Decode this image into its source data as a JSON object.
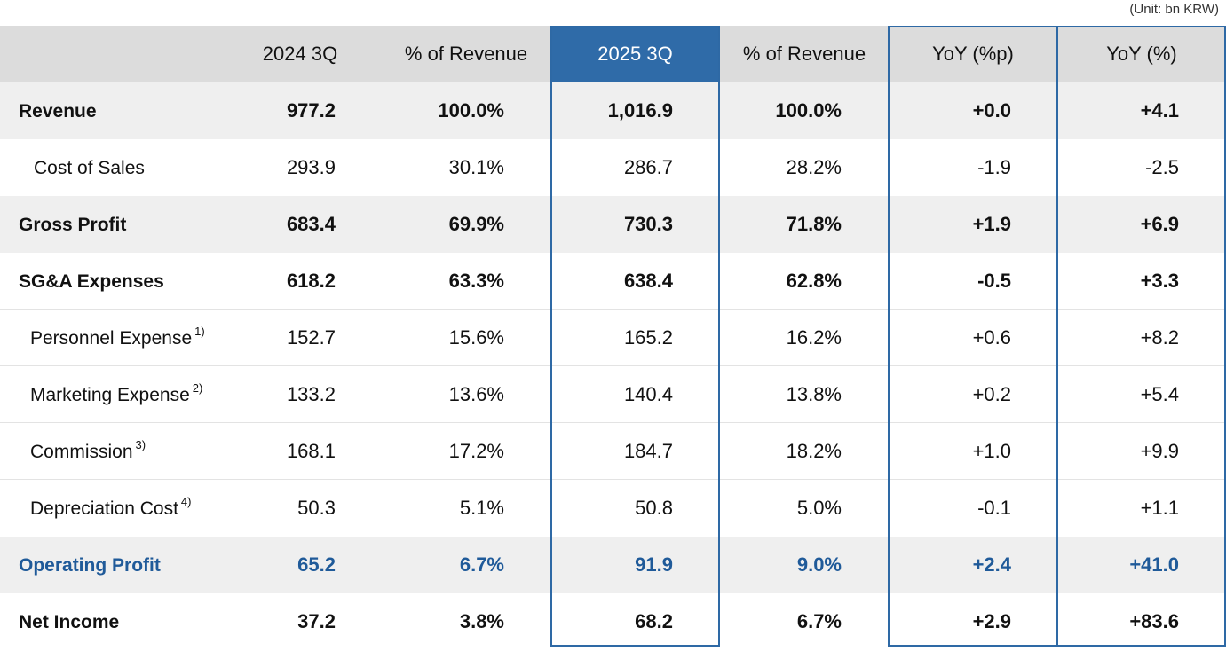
{
  "unit": "(Unit: bn KRW)",
  "columns": [
    "2024 3Q",
    "% of Revenue",
    "2025 3Q",
    "% of Revenue",
    "YoY (%p)",
    "YoY  (%)"
  ],
  "rows": [
    {
      "label": "Revenue",
      "note": "",
      "values": [
        "977.2",
        "100.0%",
        "1,016.9",
        "100.0%",
        "+0.0",
        "+4.1"
      ]
    },
    {
      "label": "Cost of Sales",
      "note": "",
      "values": [
        "293.9",
        "30.1%",
        "286.7",
        "28.2%",
        "-1.9",
        "-2.5"
      ]
    },
    {
      "label": "Gross Profit",
      "note": "",
      "values": [
        "683.4",
        "69.9%",
        "730.3",
        "71.8%",
        "+1.9",
        "+6.9"
      ]
    },
    {
      "label": "SG&A Expenses",
      "note": "",
      "values": [
        "618.2",
        "63.3%",
        "638.4",
        "62.8%",
        "-0.5",
        "+3.3"
      ]
    },
    {
      "label": "Personnel Expense",
      "note": "1)",
      "values": [
        "152.7",
        "15.6%",
        "165.2",
        "16.2%",
        "+0.6",
        "+8.2"
      ]
    },
    {
      "label": "Marketing Expense",
      "note": "2)",
      "values": [
        "133.2",
        "13.6%",
        "140.4",
        "13.8%",
        "+0.2",
        "+5.4"
      ]
    },
    {
      "label": "Commission",
      "note": "3)",
      "values": [
        "168.1",
        "17.2%",
        "184.7",
        "18.2%",
        "+1.0",
        "+9.9"
      ]
    },
    {
      "label": "Depreciation Cost",
      "note": "4)",
      "values": [
        "50.3",
        "5.1%",
        "50.8",
        "5.0%",
        "-0.1",
        "+1.1"
      ]
    },
    {
      "label": "Operating Profit",
      "note": "",
      "values": [
        "65.2",
        "6.7%",
        "91.9",
        "9.0%",
        "+2.4",
        "+41.0"
      ]
    },
    {
      "label": "Net Income",
      "note": "",
      "values": [
        "37.2",
        "3.8%",
        "68.2",
        "6.7%",
        "+2.9",
        "+83.6"
      ]
    }
  ],
  "colors": {
    "accent": "#2f6ba8",
    "highlight_text": "#1f5a99",
    "header_bg": "#dcdcdc",
    "row_gray": "#efefef"
  }
}
